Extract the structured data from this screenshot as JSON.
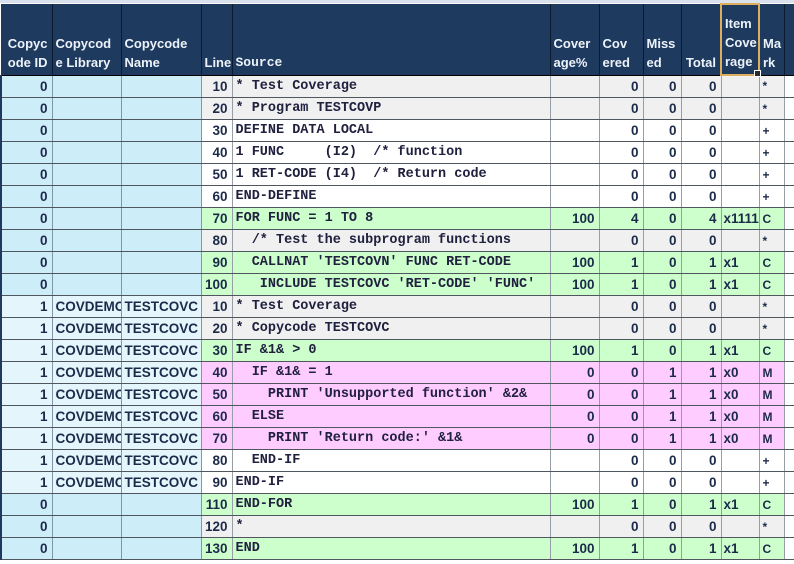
{
  "colors": {
    "header_bg": "#1f3a5f",
    "header_text": "#ecf2f9",
    "covered_row": "#ccffcc",
    "missed_row": "#ffccff",
    "comment_row": "#f0f0f0",
    "plain_row": "#ffffff",
    "copycode0_cells": "#cdedf9",
    "copycode1_cells": "#e4f5fc",
    "selected_header_border": "#ddae5e"
  },
  "table": {
    "selected_header": "Item Coverage",
    "columns": [
      {
        "key": "id",
        "label": "Copyc\node ID"
      },
      {
        "key": "lib",
        "label": "Copycod\ne Library"
      },
      {
        "key": "name",
        "label": "Copycode\nName"
      },
      {
        "key": "line",
        "label": "Line"
      },
      {
        "key": "source",
        "label": "Source"
      },
      {
        "key": "pct",
        "label": "Cover\nage%"
      },
      {
        "key": "covered",
        "label": "Cov\nered"
      },
      {
        "key": "missed",
        "label": "Miss\ned"
      },
      {
        "key": "total",
        "label": "Total"
      },
      {
        "key": "item",
        "label": "Item\nCove\nrage"
      },
      {
        "key": "mark",
        "label": "Ma\nrk"
      },
      {
        "key": "end",
        "label": ""
      }
    ],
    "rows": [
      {
        "id": "0",
        "lib": "",
        "name": "",
        "line": "10",
        "source": "* Test Coverage",
        "pct": "",
        "covered": "0",
        "missed": "0",
        "total": "0",
        "item": "",
        "mark": "*",
        "status": "comment"
      },
      {
        "id": "0",
        "lib": "",
        "name": "",
        "line": "20",
        "source": "* Program TESTCOVP",
        "pct": "",
        "covered": "0",
        "missed": "0",
        "total": "0",
        "item": "",
        "mark": "*",
        "status": "comment"
      },
      {
        "id": "0",
        "lib": "",
        "name": "",
        "line": "30",
        "source": "DEFINE DATA LOCAL",
        "pct": "",
        "covered": "0",
        "missed": "0",
        "total": "0",
        "item": "",
        "mark": "+",
        "status": "plain"
      },
      {
        "id": "0",
        "lib": "",
        "name": "",
        "line": "40",
        "source": "1 FUNC     (I2)  /* function",
        "pct": "",
        "covered": "0",
        "missed": "0",
        "total": "0",
        "item": "",
        "mark": "+",
        "status": "plain"
      },
      {
        "id": "0",
        "lib": "",
        "name": "",
        "line": "50",
        "source": "1 RET-CODE (I4)  /* Return code",
        "pct": "",
        "covered": "0",
        "missed": "0",
        "total": "0",
        "item": "",
        "mark": "+",
        "status": "plain"
      },
      {
        "id": "0",
        "lib": "",
        "name": "",
        "line": "60",
        "source": "END-DEFINE",
        "pct": "",
        "covered": "0",
        "missed": "0",
        "total": "0",
        "item": "",
        "mark": "+",
        "status": "plain"
      },
      {
        "id": "0",
        "lib": "",
        "name": "",
        "line": "70",
        "source": "FOR FUNC = 1 TO 8",
        "pct": "100",
        "covered": "4",
        "missed": "0",
        "total": "4",
        "item": "x1111",
        "mark": "C",
        "status": "covered"
      },
      {
        "id": "0",
        "lib": "",
        "name": "",
        "line": "80",
        "source": "  /* Test the subprogram functions",
        "pct": "",
        "covered": "0",
        "missed": "0",
        "total": "0",
        "item": "",
        "mark": "*",
        "status": "comment"
      },
      {
        "id": "0",
        "lib": "",
        "name": "",
        "line": "90",
        "source": "  CALLNAT 'TESTCOVN' FUNC RET-CODE",
        "pct": "100",
        "covered": "1",
        "missed": "0",
        "total": "1",
        "item": "x1",
        "mark": "C",
        "status": "covered"
      },
      {
        "id": "0",
        "lib": "",
        "name": "",
        "line": "100",
        "source": "   INCLUDE TESTCOVC 'RET-CODE' 'FUNC'",
        "pct": "100",
        "covered": "1",
        "missed": "0",
        "total": "1",
        "item": "x1",
        "mark": "C",
        "status": "covered"
      },
      {
        "id": "1",
        "lib": "COVDEMO",
        "name": "TESTCOVC",
        "line": "10",
        "source": "* Test Coverage",
        "pct": "",
        "covered": "0",
        "missed": "0",
        "total": "0",
        "item": "",
        "mark": "*",
        "status": "comment"
      },
      {
        "id": "1",
        "lib": "COVDEMO",
        "name": "TESTCOVC",
        "line": "20",
        "source": "* Copycode TESTCOVC",
        "pct": "",
        "covered": "0",
        "missed": "0",
        "total": "0",
        "item": "",
        "mark": "*",
        "status": "comment"
      },
      {
        "id": "1",
        "lib": "COVDEMO",
        "name": "TESTCOVC",
        "line": "30",
        "source": "IF &1& > 0",
        "pct": "100",
        "covered": "1",
        "missed": "0",
        "total": "1",
        "item": "x1",
        "mark": "C",
        "status": "covered"
      },
      {
        "id": "1",
        "lib": "COVDEMO",
        "name": "TESTCOVC",
        "line": "40",
        "source": "  IF &1& = 1",
        "pct": "0",
        "covered": "0",
        "missed": "1",
        "total": "1",
        "item": "x0",
        "mark": "M",
        "status": "missed"
      },
      {
        "id": "1",
        "lib": "COVDEMO",
        "name": "TESTCOVC",
        "line": "50",
        "source": "    PRINT 'Unsupported function' &2&",
        "pct": "0",
        "covered": "0",
        "missed": "1",
        "total": "1",
        "item": "x0",
        "mark": "M",
        "status": "missed"
      },
      {
        "id": "1",
        "lib": "COVDEMO",
        "name": "TESTCOVC",
        "line": "60",
        "source": "  ELSE",
        "pct": "0",
        "covered": "0",
        "missed": "1",
        "total": "1",
        "item": "x0",
        "mark": "M",
        "status": "missed"
      },
      {
        "id": "1",
        "lib": "COVDEMO",
        "name": "TESTCOVC",
        "line": "70",
        "source": "    PRINT 'Return code:' &1&",
        "pct": "0",
        "covered": "0",
        "missed": "1",
        "total": "1",
        "item": "x0",
        "mark": "M",
        "status": "missed"
      },
      {
        "id": "1",
        "lib": "COVDEMO",
        "name": "TESTCOVC",
        "line": "80",
        "source": "  END-IF",
        "pct": "",
        "covered": "0",
        "missed": "0",
        "total": "0",
        "item": "",
        "mark": "+",
        "status": "plain"
      },
      {
        "id": "1",
        "lib": "COVDEMO",
        "name": "TESTCOVC",
        "line": "90",
        "source": "END-IF",
        "pct": "",
        "covered": "0",
        "missed": "0",
        "total": "0",
        "item": "",
        "mark": "+",
        "status": "plain"
      },
      {
        "id": "0",
        "lib": "",
        "name": "",
        "line": "110",
        "source": "END-FOR",
        "pct": "100",
        "covered": "1",
        "missed": "0",
        "total": "1",
        "item": "x1",
        "mark": "C",
        "status": "covered"
      },
      {
        "id": "0",
        "lib": "",
        "name": "",
        "line": "120",
        "source": "*",
        "pct": "",
        "covered": "0",
        "missed": "0",
        "total": "0",
        "item": "",
        "mark": "*",
        "status": "comment"
      },
      {
        "id": "0",
        "lib": "",
        "name": "",
        "line": "130",
        "source": "END",
        "pct": "100",
        "covered": "1",
        "missed": "0",
        "total": "1",
        "item": "x1",
        "mark": "C",
        "status": "covered"
      }
    ]
  }
}
